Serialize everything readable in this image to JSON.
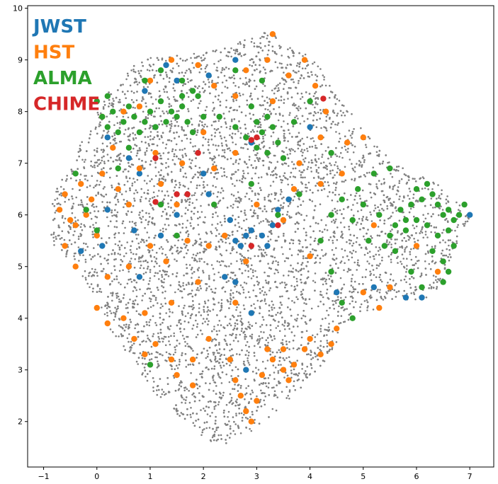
{
  "chart_data": {
    "type": "scatter",
    "title": "",
    "xlabel": "",
    "ylabel": "",
    "xlim": [
      -1.3,
      7.45
    ],
    "ylim": [
      1.12,
      10.05
    ],
    "xticks": [
      -1,
      0,
      1,
      2,
      3,
      4,
      5,
      6,
      7
    ],
    "yticks": [
      2,
      3,
      4,
      5,
      6,
      7,
      8,
      9,
      10
    ],
    "grid": false,
    "legend": "top-left",
    "background_points": {
      "color": "#808080",
      "description_regions": "dense gray point cloud over x from -0.9 to 7.0 and y from 1.5 to 9.6"
    },
    "series": [
      {
        "name": "JWST",
        "color": "#1f77b4",
        "points": [
          [
            0.2,
            7.5
          ],
          [
            0.6,
            7.1
          ],
          [
            0.8,
            6.8
          ],
          [
            1.1,
            7.7
          ],
          [
            0.9,
            8.4
          ],
          [
            1.3,
            8.9
          ],
          [
            1.5,
            8.6
          ],
          [
            2.0,
            6.8
          ],
          [
            2.1,
            6.4
          ],
          [
            2.5,
            5.9
          ],
          [
            2.6,
            5.5
          ],
          [
            2.7,
            5.4
          ],
          [
            2.8,
            5.6
          ],
          [
            2.9,
            5.7
          ],
          [
            3.1,
            5.6
          ],
          [
            3.2,
            5.4
          ],
          [
            2.6,
            4.7
          ],
          [
            2.9,
            4.1
          ],
          [
            3.3,
            5.8
          ],
          [
            3.4,
            6.1
          ],
          [
            3.6,
            6.3
          ],
          [
            1.5,
            6.0
          ],
          [
            1.2,
            5.6
          ],
          [
            0.8,
            4.8
          ],
          [
            0.1,
            5.4
          ],
          [
            -0.3,
            5.3
          ],
          [
            0.2,
            6.1
          ],
          [
            0.7,
            5.7
          ],
          [
            2.4,
            4.8
          ],
          [
            2.8,
            3.0
          ],
          [
            4.5,
            4.5
          ],
          [
            5.2,
            4.6
          ],
          [
            5.8,
            4.4
          ],
          [
            6.1,
            4.4
          ],
          [
            7.0,
            6.0
          ],
          [
            4.0,
            7.7
          ],
          [
            2.9,
            7.4
          ],
          [
            2.1,
            8.7
          ],
          [
            2.6,
            9.0
          ]
        ]
      },
      {
        "name": "HST",
        "color": "#ff7f0e",
        "points": [
          [
            -0.6,
            6.4
          ],
          [
            -0.7,
            6.1
          ],
          [
            -0.5,
            5.9
          ],
          [
            -0.3,
            6.6
          ],
          [
            -0.6,
            5.4
          ],
          [
            -0.4,
            5.0
          ],
          [
            -0.1,
            6.3
          ],
          [
            0.1,
            6.8
          ],
          [
            0.4,
            6.5
          ],
          [
            0.6,
            6.2
          ],
          [
            0.8,
            6.9
          ],
          [
            0.3,
            7.3
          ],
          [
            0.1,
            7.9
          ],
          [
            0.5,
            8.0
          ],
          [
            0.8,
            8.1
          ],
          [
            1.0,
            8.6
          ],
          [
            1.4,
            9.0
          ],
          [
            1.9,
            8.9
          ],
          [
            2.2,
            8.5
          ],
          [
            2.6,
            8.3
          ],
          [
            2.8,
            8.8
          ],
          [
            3.2,
            9.0
          ],
          [
            3.3,
            9.5
          ],
          [
            3.6,
            8.7
          ],
          [
            3.9,
            9.0
          ],
          [
            4.1,
            8.5
          ],
          [
            4.3,
            8.0
          ],
          [
            4.2,
            7.5
          ],
          [
            4.7,
            7.4
          ],
          [
            5.0,
            7.5
          ],
          [
            4.6,
            6.8
          ],
          [
            1.2,
            6.6
          ],
          [
            1.5,
            6.2
          ],
          [
            1.0,
            5.4
          ],
          [
            1.3,
            5.1
          ],
          [
            0.6,
            5.0
          ],
          [
            0.2,
            4.8
          ],
          [
            0.0,
            4.2
          ],
          [
            0.2,
            3.9
          ],
          [
            0.5,
            4.0
          ],
          [
            0.7,
            3.6
          ],
          [
            0.9,
            3.3
          ],
          [
            1.1,
            3.5
          ],
          [
            1.4,
            3.2
          ],
          [
            1.5,
            2.9
          ],
          [
            1.8,
            2.7
          ],
          [
            1.8,
            3.2
          ],
          [
            2.1,
            3.6
          ],
          [
            2.5,
            3.2
          ],
          [
            2.6,
            2.8
          ],
          [
            2.7,
            2.5
          ],
          [
            2.8,
            2.2
          ],
          [
            2.9,
            2.0
          ],
          [
            3.0,
            2.4
          ],
          [
            3.1,
            2.9
          ],
          [
            3.3,
            3.2
          ],
          [
            3.5,
            3.0
          ],
          [
            3.6,
            2.8
          ],
          [
            3.2,
            3.4
          ],
          [
            3.5,
            3.4
          ],
          [
            3.7,
            3.1
          ],
          [
            3.9,
            3.4
          ],
          [
            4.0,
            3.6
          ],
          [
            4.2,
            3.3
          ],
          [
            4.4,
            3.5
          ],
          [
            4.5,
            3.8
          ],
          [
            2.6,
            4.3
          ],
          [
            1.9,
            4.7
          ],
          [
            1.4,
            4.3
          ],
          [
            0.9,
            4.1
          ],
          [
            2.4,
            5.6
          ],
          [
            3.0,
            6.2
          ],
          [
            2.2,
            6.9
          ],
          [
            2.6,
            7.2
          ],
          [
            3.7,
            6.5
          ],
          [
            3.5,
            5.9
          ],
          [
            4.0,
            5.2
          ],
          [
            4.2,
            6.6
          ],
          [
            5.2,
            5.8
          ],
          [
            5.5,
            4.6
          ],
          [
            5.3,
            4.2
          ],
          [
            5.0,
            4.5
          ],
          [
            6.0,
            5.4
          ],
          [
            6.4,
            4.9
          ],
          [
            -0.4,
            5.8
          ],
          [
            -0.2,
            6.0
          ],
          [
            0.0,
            5.6
          ],
          [
            1.1,
            7.2
          ],
          [
            1.6,
            7.0
          ],
          [
            2.0,
            7.6
          ],
          [
            3.3,
            8.2
          ],
          [
            3.8,
            7.0
          ],
          [
            1.7,
            5.5
          ],
          [
            2.1,
            5.4
          ],
          [
            2.8,
            5.1
          ]
        ]
      },
      {
        "name": "ALMA",
        "color": "#2ca02c",
        "points": [
          [
            0.0,
            8.2
          ],
          [
            0.1,
            7.9
          ],
          [
            0.2,
            7.7
          ],
          [
            0.3,
            8.0
          ],
          [
            0.4,
            7.6
          ],
          [
            0.5,
            7.8
          ],
          [
            0.6,
            8.1
          ],
          [
            0.7,
            7.9
          ],
          [
            0.8,
            7.6
          ],
          [
            0.9,
            7.8
          ],
          [
            1.0,
            8.0
          ],
          [
            1.1,
            7.7
          ],
          [
            1.2,
            8.2
          ],
          [
            1.3,
            7.8
          ],
          [
            1.4,
            8.0
          ],
          [
            1.5,
            7.9
          ],
          [
            1.6,
            8.1
          ],
          [
            1.7,
            7.8
          ],
          [
            1.8,
            7.6
          ],
          [
            1.9,
            8.3
          ],
          [
            2.0,
            7.9
          ],
          [
            1.8,
            8.4
          ],
          [
            1.6,
            8.3
          ],
          [
            0.2,
            8.3
          ],
          [
            0.9,
            8.6
          ],
          [
            1.2,
            8.8
          ],
          [
            1.6,
            8.6
          ],
          [
            2.9,
            8.1
          ],
          [
            3.0,
            7.8
          ],
          [
            3.1,
            7.6
          ],
          [
            3.2,
            7.9
          ],
          [
            3.3,
            7.7
          ],
          [
            2.8,
            7.5
          ],
          [
            3.0,
            7.3
          ],
          [
            3.2,
            7.2
          ],
          [
            3.4,
            7.4
          ],
          [
            3.5,
            7.1
          ],
          [
            2.3,
            7.9
          ],
          [
            2.6,
            7.7
          ],
          [
            6.0,
            6.5
          ],
          [
            6.1,
            6.3
          ],
          [
            6.2,
            6.6
          ],
          [
            6.3,
            6.4
          ],
          [
            6.4,
            6.2
          ],
          [
            6.5,
            6.0
          ],
          [
            6.6,
            6.1
          ],
          [
            6.7,
            5.9
          ],
          [
            6.8,
            6.0
          ],
          [
            5.9,
            6.2
          ],
          [
            5.8,
            5.9
          ],
          [
            5.7,
            6.1
          ],
          [
            5.6,
            5.8
          ],
          [
            5.5,
            5.6
          ],
          [
            5.4,
            5.4
          ],
          [
            5.6,
            5.3
          ],
          [
            5.8,
            5.7
          ],
          [
            6.0,
            5.9
          ],
          [
            6.2,
            5.8
          ],
          [
            6.4,
            5.6
          ],
          [
            6.3,
            5.3
          ],
          [
            6.5,
            5.1
          ],
          [
            6.6,
            4.9
          ],
          [
            6.5,
            4.7
          ],
          [
            6.7,
            5.4
          ],
          [
            6.6,
            5.7
          ],
          [
            5.3,
            6.0
          ],
          [
            5.1,
            5.5
          ],
          [
            5.0,
            6.2
          ],
          [
            5.2,
            6.8
          ],
          [
            5.5,
            6.9
          ],
          [
            4.8,
            5.9
          ],
          [
            4.9,
            6.5
          ],
          [
            4.6,
            6.3
          ],
          [
            4.4,
            6.0
          ],
          [
            0.4,
            6.9
          ],
          [
            0.6,
            7.3
          ],
          [
            -0.2,
            6.1
          ],
          [
            -0.4,
            6.8
          ],
          [
            0.0,
            5.7
          ],
          [
            1.5,
            5.6
          ],
          [
            1.2,
            6.2
          ],
          [
            2.2,
            6.2
          ],
          [
            2.9,
            6.6
          ],
          [
            3.4,
            6.0
          ],
          [
            3.8,
            6.4
          ],
          [
            4.2,
            5.5
          ],
          [
            4.4,
            4.9
          ],
          [
            4.6,
            4.3
          ],
          [
            4.8,
            4.0
          ],
          [
            1.0,
            3.1
          ],
          [
            2.6,
            8.8
          ],
          [
            3.1,
            8.6
          ],
          [
            3.7,
            7.8
          ],
          [
            4.0,
            8.2
          ],
          [
            4.4,
            7.2
          ],
          [
            6.9,
            6.2
          ],
          [
            6.1,
            4.6
          ],
          [
            5.9,
            4.9
          ]
        ]
      },
      {
        "name": "CHIME",
        "color": "#d62728",
        "points": [
          [
            4.25,
            8.25
          ],
          [
            2.9,
            7.45
          ],
          [
            3.0,
            7.5
          ],
          [
            1.9,
            7.2
          ],
          [
            1.1,
            7.1
          ],
          [
            1.5,
            6.4
          ],
          [
            1.7,
            6.4
          ],
          [
            1.1,
            6.25
          ],
          [
            3.4,
            5.8
          ],
          [
            2.9,
            5.4
          ]
        ]
      }
    ]
  }
}
